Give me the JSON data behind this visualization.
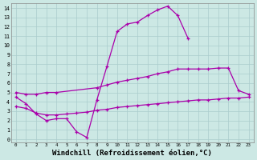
{
  "background_color": "#cce8e4",
  "grid_color": "#aacccc",
  "line_color": "#aa00aa",
  "xlabel": "Windchill (Refroidissement éolien,°C)",
  "xlabel_fontsize": 6.5,
  "ytick_vals": [
    0,
    1,
    2,
    3,
    4,
    5,
    6,
    7,
    8,
    9,
    10,
    11,
    12,
    13,
    14
  ],
  "xtick_labels": [
    "0",
    "1",
    "2",
    "3",
    "4",
    "5",
    "6",
    "7",
    "8",
    "9",
    "10",
    "11",
    "12",
    "13",
    "14",
    "15",
    "16",
    "17",
    "18",
    "19",
    "20",
    "21",
    "22",
    "23"
  ],
  "xlim": [
    -0.5,
    23.5
  ],
  "ylim": [
    -0.3,
    14.5
  ],
  "upper_x": [
    0,
    1,
    2,
    3,
    4,
    5,
    6,
    7,
    8,
    9,
    10,
    11,
    12,
    13,
    14,
    15,
    16,
    17
  ],
  "upper_y": [
    4.5,
    3.8,
    2.7,
    2.0,
    2.2,
    2.2,
    0.8,
    0.2,
    4.2,
    7.8,
    11.5,
    12.3,
    12.5,
    13.2,
    13.8,
    14.2,
    13.2,
    10.8
  ],
  "mid_x": [
    0,
    1,
    2,
    3,
    4,
    8,
    9,
    10,
    11,
    12,
    13,
    14,
    15,
    16,
    17,
    18,
    19,
    20,
    21,
    22,
    23
  ],
  "mid_y": [
    5.0,
    4.8,
    4.8,
    5.0,
    5.0,
    5.5,
    5.8,
    6.1,
    6.3,
    6.5,
    6.7,
    7.0,
    7.2,
    7.5,
    7.5,
    7.5,
    7.5,
    7.6,
    7.6,
    5.2,
    4.8
  ],
  "low_x": [
    0,
    1,
    2,
    3,
    4,
    5,
    6,
    7,
    8,
    9,
    10,
    11,
    12,
    13,
    14,
    15,
    16,
    17,
    18,
    19,
    20,
    21,
    22,
    23
  ],
  "low_y": [
    3.5,
    3.3,
    2.8,
    2.6,
    2.6,
    2.7,
    2.8,
    2.9,
    3.1,
    3.2,
    3.4,
    3.5,
    3.6,
    3.7,
    3.8,
    3.9,
    4.0,
    4.1,
    4.2,
    4.2,
    4.3,
    4.4,
    4.4,
    4.5
  ]
}
